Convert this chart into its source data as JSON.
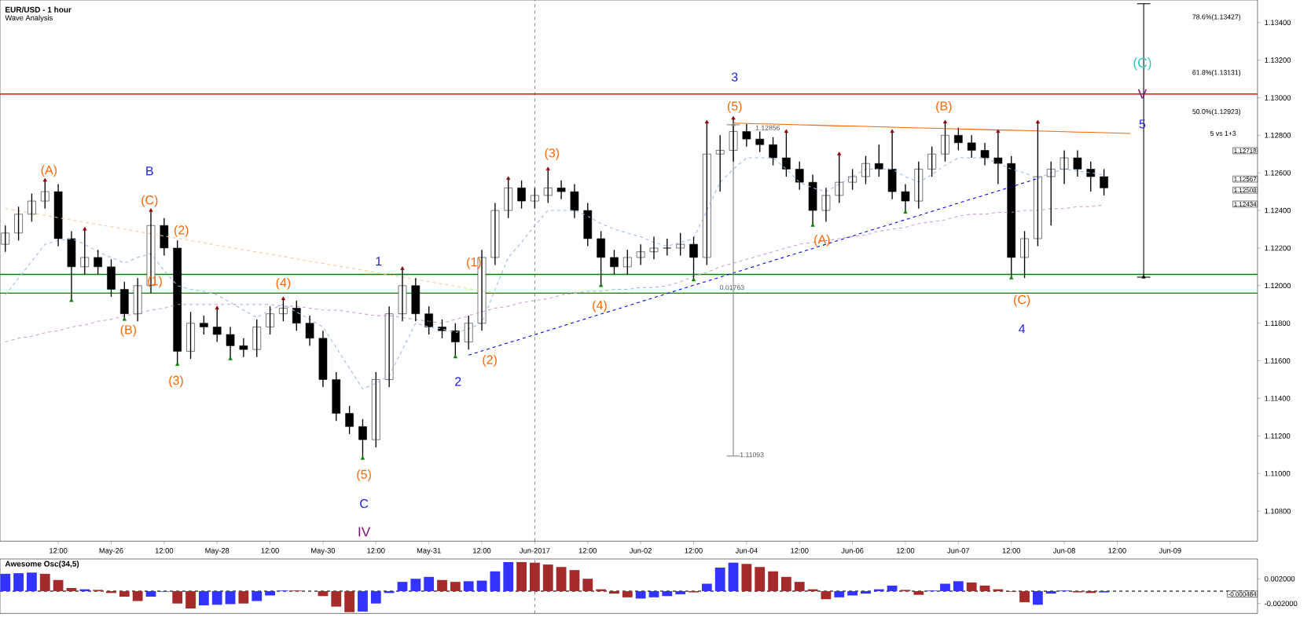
{
  "chart_data": [
    {
      "type": "candlestick",
      "title": "EUR/USD - 1 hour",
      "subtitle": "Wave Analysis",
      "categories": [
        null,
        null,
        null,
        null,
        "12:00",
        null,
        null,
        null,
        "May-26",
        null,
        null,
        null,
        "12:00",
        null,
        null,
        null,
        "May-28",
        null,
        null,
        null,
        "12:00",
        null,
        null,
        null,
        "May-30",
        null,
        null,
        null,
        "12:00",
        null,
        null,
        null,
        "May-31",
        null,
        null,
        null,
        "12:00",
        null,
        null,
        null,
        "Jun-2017",
        null,
        null,
        null,
        "12:00",
        null,
        null,
        null,
        "Jun-02",
        null,
        null,
        null,
        "12:00",
        null,
        null,
        null,
        "Jun-04",
        null,
        null,
        null,
        "12:00",
        null,
        null,
        null,
        "Jun-06",
        null,
        null,
        null,
        "12:00",
        null,
        null,
        null,
        "Jun-07",
        null,
        null,
        null,
        "12:00",
        null,
        null,
        null,
        "Jun-08",
        null,
        null,
        null,
        "12:00",
        null,
        null,
        null,
        "Jun-09",
        null,
        null,
        null,
        null,
        null,
        null
      ],
      "ohlc": [
        [
          1.1222,
          1.1232,
          1.1218,
          1.1228
        ],
        [
          1.1228,
          1.1242,
          1.1224,
          1.1238
        ],
        [
          1.1238,
          1.1249,
          1.1234,
          1.1245
        ],
        [
          1.1245,
          1.1256,
          1.1241,
          1.125
        ],
        [
          1.125,
          1.1254,
          1.1221,
          1.1225
        ],
        [
          1.1225,
          1.1229,
          1.1192,
          1.121
        ],
        [
          1.121,
          1.123,
          1.1206,
          1.1215
        ],
        [
          1.1215,
          1.1219,
          1.1206,
          1.121
        ],
        [
          1.121,
          1.1214,
          1.1194,
          1.1198
        ],
        [
          1.1198,
          1.1202,
          1.1182,
          1.1185
        ],
        [
          1.1185,
          1.1204,
          1.1181,
          1.12
        ],
        [
          1.12,
          1.124,
          1.1196,
          1.1232
        ],
        [
          1.1232,
          1.1236,
          1.1216,
          1.122
        ],
        [
          1.122,
          1.1224,
          1.1158,
          1.1165
        ],
        [
          1.1165,
          1.1186,
          1.1161,
          1.118
        ],
        [
          1.118,
          1.1184,
          1.1174,
          1.1178
        ],
        [
          1.1178,
          1.1188,
          1.117,
          1.1174
        ],
        [
          1.1174,
          1.1178,
          1.1161,
          1.1168
        ],
        [
          1.1168,
          1.1172,
          1.1162,
          1.1166
        ],
        [
          1.1166,
          1.1182,
          1.1162,
          1.1178
        ],
        [
          1.1178,
          1.1189,
          1.1174,
          1.1185
        ],
        [
          1.1185,
          1.1193,
          1.1181,
          1.1188
        ],
        [
          1.1188,
          1.1192,
          1.1176,
          1.118
        ],
        [
          1.118,
          1.1184,
          1.1168,
          1.1172
        ],
        [
          1.1172,
          1.1176,
          1.1146,
          1.115
        ],
        [
          1.115,
          1.1154,
          1.1128,
          1.1132
        ],
        [
          1.1132,
          1.1136,
          1.1121,
          1.1125
        ],
        [
          1.1125,
          1.1129,
          1.1108,
          1.1118
        ],
        [
          1.1118,
          1.1154,
          1.1114,
          1.115
        ],
        [
          1.115,
          1.1189,
          1.1146,
          1.1185
        ],
        [
          1.1185,
          1.1209,
          1.1181,
          1.12
        ],
        [
          1.12,
          1.1204,
          1.1181,
          1.1185
        ],
        [
          1.1185,
          1.1189,
          1.1174,
          1.1178
        ],
        [
          1.1178,
          1.1182,
          1.1172,
          1.1176
        ],
        [
          1.1176,
          1.118,
          1.1162,
          1.117
        ],
        [
          1.117,
          1.1184,
          1.1166,
          1.118
        ],
        [
          1.118,
          1.1219,
          1.1176,
          1.1215
        ],
        [
          1.1215,
          1.1244,
          1.1211,
          1.124
        ],
        [
          1.124,
          1.1257,
          1.1236,
          1.1252
        ],
        [
          1.1252,
          1.1256,
          1.1241,
          1.1245
        ],
        [
          1.1245,
          1.1252,
          1.1241,
          1.1248
        ],
        [
          1.1248,
          1.1262,
          1.1244,
          1.1252
        ],
        [
          1.1252,
          1.1256,
          1.1246,
          1.125
        ],
        [
          1.125,
          1.1254,
          1.1236,
          1.124
        ],
        [
          1.124,
          1.1244,
          1.1221,
          1.1225
        ],
        [
          1.1225,
          1.1229,
          1.12,
          1.1215
        ],
        [
          1.1215,
          1.1219,
          1.1206,
          1.121
        ],
        [
          1.121,
          1.1219,
          1.1206,
          1.1215
        ],
        [
          1.1215,
          1.1222,
          1.1211,
          1.1218
        ],
        [
          1.1218,
          1.1226,
          1.1214,
          1.122
        ],
        [
          1.122,
          1.1225,
          1.1216,
          1.122
        ],
        [
          1.122,
          1.1228,
          1.1216,
          1.1222
        ],
        [
          1.1222,
          1.1226,
          1.1203,
          1.1215
        ],
        [
          1.1215,
          1.1287,
          1.1211,
          1.127
        ],
        [
          1.127,
          1.128,
          1.125,
          1.1272
        ],
        [
          1.1272,
          1.1289,
          1.1266,
          1.1282
        ],
        [
          1.1282,
          1.1286,
          1.1274,
          1.1278
        ],
        [
          1.1278,
          1.1282,
          1.1271,
          1.1275
        ],
        [
          1.1275,
          1.1279,
          1.1264,
          1.1268
        ],
        [
          1.1268,
          1.1282,
          1.1258,
          1.1262
        ],
        [
          1.1262,
          1.1266,
          1.1251,
          1.1255
        ],
        [
          1.1255,
          1.1259,
          1.1232,
          1.124
        ],
        [
          1.124,
          1.1252,
          1.1234,
          1.1248
        ],
        [
          1.1248,
          1.127,
          1.1244,
          1.1255
        ],
        [
          1.1255,
          1.1262,
          1.1251,
          1.1258
        ],
        [
          1.1258,
          1.1269,
          1.1254,
          1.1265
        ],
        [
          1.1265,
          1.1275,
          1.1258,
          1.1262
        ],
        [
          1.1262,
          1.1282,
          1.1246,
          1.125
        ],
        [
          1.125,
          1.1254,
          1.1239,
          1.1245
        ],
        [
          1.1245,
          1.1266,
          1.1241,
          1.1262
        ],
        [
          1.1262,
          1.1274,
          1.1258,
          1.127
        ],
        [
          1.127,
          1.1287,
          1.1266,
          1.128
        ],
        [
          1.128,
          1.1284,
          1.1272,
          1.1276
        ],
        [
          1.1276,
          1.128,
          1.1268,
          1.1272
        ],
        [
          1.1272,
          1.1276,
          1.1264,
          1.1268
        ],
        [
          1.1268,
          1.1282,
          1.1254,
          1.1265
        ],
        [
          1.1265,
          1.1269,
          1.1204,
          1.1215
        ],
        [
          1.1215,
          1.1229,
          1.1204,
          1.1225
        ],
        [
          1.1225,
          1.1287,
          1.1221,
          1.1258
        ],
        [
          1.1258,
          1.1266,
          1.1232,
          1.1262
        ],
        [
          1.1262,
          1.1272,
          1.1254,
          1.1268
        ],
        [
          1.1268,
          1.1272,
          1.1258,
          1.1262
        ],
        [
          1.1262,
          1.1266,
          1.125,
          1.1258
        ],
        [
          1.1258,
          1.1262,
          1.1248,
          1.1252
        ],
        null,
        null,
        null,
        null,
        null,
        null,
        null,
        null,
        null,
        null,
        null
      ],
      "series": [
        {
          "type": "line",
          "color": "#9ab8f0",
          "line_style": "dashed",
          "values": [
            1.1195,
            1.1204,
            1.1213,
            1.1222,
            1.1224,
            1.1225,
            1.1222,
            1.1218,
            1.1215,
            1.1212,
            1.1215,
            1.1217,
            1.1208,
            1.12,
            1.1198,
            1.1197,
            1.1195,
            1.1191,
            1.1187,
            1.1183,
            1.1187,
            1.119,
            1.1186,
            1.1182,
            1.1178,
            1.1167,
            1.1156,
            1.1145,
            1.1148,
            1.1152,
            1.1166,
            1.118,
            1.1178,
            1.1177,
            1.1175,
            1.1177,
            1.118,
            1.1198,
            1.1215,
            1.1223,
            1.1232,
            1.124,
            1.124,
            1.124,
            1.1237,
            1.1233,
            1.123,
            1.1228,
            1.1226,
            1.1223,
            1.1221,
            1.1223,
            1.1225,
            1.124,
            1.1255,
            1.1262,
            1.1268,
            1.1268,
            1.1268,
            1.1262,
            1.1255,
            1.1252,
            1.125,
            1.1254,
            1.1258,
            1.1262,
            1.1262,
            1.1262,
            1.1258,
            1.1255,
            1.1259,
            1.1264,
            1.1268,
            1.1268,
            1.1268,
            1.1265,
            1.1262,
            1.126,
            1.1257,
            1.126,
            1.1262,
            1.1261,
            1.126,
            1.1259,
            null,
            null,
            null,
            null,
            null,
            null,
            null,
            null,
            null,
            null,
            null
          ]
        },
        {
          "type": "line",
          "color": "#c8a0d0",
          "line_style": "dashed",
          "values": [
            1.117,
            1.1172,
            1.1173,
            1.1175,
            1.1176,
            1.1178,
            1.1179,
            1.1181,
            1.1182,
            1.1184,
            1.1185,
            1.1187,
            1.1188,
            1.119,
            1.119,
            1.119,
            1.119,
            1.119,
            1.119,
            1.119,
            1.119,
            1.1189,
            1.1189,
            1.1188,
            1.1187,
            1.1187,
            1.1186,
            1.1185,
            1.1184,
            1.1184,
            1.1183,
            1.1182,
            1.1181,
            1.118,
            1.1182,
            1.1184,
            1.1186,
            1.1188,
            1.1189,
            1.1191,
            1.1192,
            1.1193,
            1.1195,
            1.1196,
            1.1197,
            1.1197,
            1.1198,
            1.1198,
            1.1199,
            1.1199,
            1.12,
            1.1202,
            1.1205,
            1.1207,
            1.121,
            1.1212,
            1.1214,
            1.1216,
            1.1218,
            1.122,
            1.1222,
            1.1223,
            1.1224,
            1.1225,
            1.1226,
            1.1227,
            1.1229,
            1.123,
            1.1231,
            1.1233,
            1.1234,
            1.1235,
            1.1237,
            1.1238,
            1.1238,
            1.1239,
            1.1239,
            1.124,
            1.124,
            1.1241,
            1.1241,
            1.1242,
            1.1242,
            1.1243,
            null,
            null,
            null,
            null,
            null,
            null,
            null,
            null,
            null,
            null,
            null
          ]
        },
        {
          "type": "line",
          "color": "#ffc890",
          "line_style": "dashed",
          "values": [
            1.1241,
            1.12398,
            1.12386,
            1.12374,
            1.12361,
            1.12349,
            1.12337,
            1.12325,
            1.12313,
            1.12301,
            1.12288,
            1.12276,
            1.12264,
            1.12252,
            1.1224,
            1.12228,
            1.12215,
            1.12203,
            1.12191,
            1.12179,
            1.12167,
            1.12155,
            1.12142,
            1.1213,
            1.12118,
            1.12106,
            1.12094,
            1.12082,
            1.1207,
            1.12057,
            1.12045,
            1.12033,
            1.12021,
            1.12009,
            1.11997,
            1.11984,
            1.11972,
            1.1196,
            null,
            null,
            null,
            null,
            null,
            null,
            null,
            null,
            null,
            null,
            null,
            null,
            null,
            null,
            null,
            null,
            null,
            null,
            null,
            null,
            null,
            null,
            null,
            null,
            null,
            null,
            null,
            null,
            null,
            null,
            null,
            null,
            null,
            null,
            null,
            null,
            null,
            null,
            null,
            null,
            null,
            null,
            null,
            null,
            null,
            null,
            null,
            null,
            null,
            null,
            null,
            null,
            null,
            null,
            null,
            null,
            null
          ]
        },
        {
          "type": "line",
          "color": "#ff6600",
          "values": [
            null,
            null,
            null,
            null,
            null,
            null,
            null,
            null,
            null,
            null,
            null,
            null,
            null,
            null,
            null,
            null,
            null,
            null,
            null,
            null,
            null,
            null,
            null,
            null,
            null,
            null,
            null,
            null,
            null,
            null,
            null,
            null,
            null,
            null,
            null,
            null,
            null,
            null,
            null,
            null,
            null,
            null,
            null,
            null,
            null,
            null,
            null,
            null,
            null,
            null,
            null,
            null,
            null,
            null,
            null,
            1.12865,
            1.12863,
            1.12861,
            1.1286,
            1.12858,
            1.12856,
            1.12854,
            1.12852,
            1.1285,
            1.12849,
            1.12847,
            1.12845,
            1.12843,
            1.12841,
            1.12839,
            1.12838,
            1.12836,
            1.12834,
            1.12832,
            1.1283,
            1.12828,
            1.12827,
            1.12825,
            1.12823,
            1.12821,
            1.12819,
            1.12817,
            1.12816,
            1.12814,
            1.12812,
            1.1281,
            null,
            null,
            null,
            null,
            null,
            null,
            null,
            null,
            null
          ]
        },
        {
          "type": "line",
          "color": "#0000ff",
          "line_style": "dashed",
          "values": [
            null,
            null,
            null,
            null,
            null,
            null,
            null,
            null,
            null,
            null,
            null,
            null,
            null,
            null,
            null,
            null,
            null,
            null,
            null,
            null,
            null,
            null,
            null,
            null,
            null,
            null,
            null,
            null,
            null,
            null,
            null,
            null,
            null,
            null,
            null,
            1.1163,
            1.11652,
            1.11674,
            1.11696,
            1.11717,
            1.11739,
            1.11761,
            1.11783,
            1.11805,
            1.11827,
            1.11849,
            1.1187,
            1.11892,
            1.11914,
            1.11936,
            1.11958,
            1.1198,
            1.12002,
            1.12023,
            1.12045,
            1.12067,
            1.12089,
            1.12111,
            1.12133,
            1.12155,
            1.12176,
            1.12198,
            1.1222,
            1.12242,
            1.12264,
            1.12286,
            1.12308,
            1.12329,
            1.12351,
            1.12373,
            1.12395,
            1.12417,
            1.12439,
            1.12461,
            1.12482,
            1.12504,
            1.12526,
            1.12548,
            1.1257,
            null,
            null,
            null,
            null,
            null,
            null,
            null,
            null,
            null,
            null,
            null,
            null,
            null,
            null,
            null,
            null
          ]
        },
        {
          "type": "scatter",
          "color": "#808080",
          "marker": "triangle",
          "values": [
            null,
            null,
            null,
            null,
            null,
            null,
            null,
            null,
            null,
            null,
            null,
            null,
            null,
            null,
            null,
            null,
            null,
            null,
            null,
            null,
            null,
            null,
            null,
            null,
            null,
            null,
            null,
            null,
            null,
            null,
            null,
            null,
            null,
            null,
            null,
            null,
            null,
            null,
            null,
            null,
            null,
            null,
            null,
            null,
            null,
            null,
            null,
            null,
            null,
            null,
            null,
            null,
            null,
            null,
            null,
            1.12856,
            null,
            null,
            null,
            null,
            null,
            null,
            null,
            null,
            null,
            null,
            null,
            null,
            null,
            null,
            null,
            null,
            null,
            null,
            null,
            null,
            null,
            null,
            null,
            null,
            null,
            null,
            null,
            null,
            null,
            null,
            null,
            null,
            null,
            null,
            null,
            null,
            null,
            null,
            null
          ],
          "errors": [
            null,
            null,
            null,
            null,
            null,
            null,
            null,
            null,
            null,
            null,
            null,
            null,
            null,
            null,
            null,
            null,
            null,
            null,
            null,
            null,
            null,
            null,
            null,
            null,
            null,
            null,
            null,
            null,
            null,
            null,
            null,
            null,
            null,
            null,
            null,
            null,
            null,
            null,
            null,
            null,
            null,
            null,
            null,
            null,
            null,
            null,
            null,
            null,
            null,
            null,
            null,
            null,
            null,
            null,
            null,
            [
              1.11093,
              1.12856
            ],
            null,
            null,
            null,
            null,
            null,
            null,
            null,
            null,
            null,
            null,
            null,
            null,
            null,
            null,
            null,
            null,
            null,
            null,
            null,
            null,
            null,
            null,
            null,
            null,
            null,
            null,
            null,
            null,
            null,
            null,
            null,
            null,
            null,
            null,
            null,
            null,
            null,
            null,
            null
          ]
        },
        {
          "type": "scatter",
          "color": "#000000",
          "marker": "triangle",
          "values": [
            null,
            null,
            null,
            null,
            null,
            null,
            null,
            null,
            null,
            null,
            null,
            null,
            null,
            null,
            null,
            null,
            null,
            null,
            null,
            null,
            null,
            null,
            null,
            null,
            null,
            null,
            null,
            null,
            null,
            null,
            null,
            null,
            null,
            null,
            null,
            null,
            null,
            null,
            null,
            null,
            null,
            null,
            null,
            null,
            null,
            null,
            null,
            null,
            null,
            null,
            null,
            null,
            null,
            null,
            null,
            null,
            null,
            null,
            null,
            null,
            null,
            null,
            null,
            null,
            null,
            null,
            null,
            null,
            null,
            null,
            null,
            null,
            null,
            null,
            null,
            null,
            null,
            null,
            null,
            null,
            null,
            null,
            null,
            null,
            null,
            null,
            1.12045,
            null,
            null,
            null,
            null,
            null,
            null,
            null,
            null
          ],
          "errors": [
            null,
            null,
            null,
            null,
            null,
            null,
            null,
            null,
            null,
            null,
            null,
            null,
            null,
            null,
            null,
            null,
            null,
            null,
            null,
            null,
            null,
            null,
            null,
            null,
            null,
            null,
            null,
            null,
            null,
            null,
            null,
            null,
            null,
            null,
            null,
            null,
            null,
            null,
            null,
            null,
            null,
            null,
            null,
            null,
            null,
            null,
            null,
            null,
            null,
            null,
            null,
            null,
            null,
            null,
            null,
            null,
            null,
            null,
            null,
            null,
            null,
            null,
            null,
            null,
            null,
            null,
            null,
            null,
            null,
            null,
            null,
            null,
            null,
            null,
            null,
            null,
            null,
            null,
            null,
            null,
            null,
            null,
            null,
            null,
            null,
            null,
            [
              1.12045,
              1.135
            ],
            null,
            null,
            null,
            null,
            null,
            null,
            null,
            null
          ]
        },
        {
          "type": "scatter",
          "color": "#8b0000",
          "marker": "triangle",
          "values": [
            null,
            null,
            null,
            1.1256,
            null,
            null,
            1.123,
            null,
            null,
            null,
            null,
            1.124,
            null,
            null,
            null,
            null,
            1.1188,
            null,
            null,
            null,
            null,
            1.1193,
            null,
            null,
            null,
            null,
            null,
            null,
            null,
            null,
            1.1209,
            null,
            null,
            null,
            null,
            null,
            null,
            null,
            1.1257,
            null,
            null,
            1.1262,
            null,
            null,
            null,
            null,
            null,
            null,
            null,
            null,
            null,
            null,
            null,
            1.1287,
            null,
            1.1289,
            null,
            null,
            null,
            1.1282,
            null,
            null,
            null,
            1.127,
            null,
            null,
            null,
            1.1282,
            null,
            null,
            null,
            1.1287,
            null,
            null,
            null,
            1.1282,
            null,
            null,
            1.1287,
            null,
            null,
            null,
            null,
            null,
            null,
            null,
            null,
            null,
            null,
            null,
            null,
            null,
            null,
            null,
            null
          ]
        },
        {
          "type": "scatter",
          "color": "#008000",
          "marker": "triangle",
          "values": [
            null,
            null,
            null,
            null,
            null,
            1.1192,
            null,
            null,
            null,
            1.1182,
            null,
            null,
            null,
            1.1158,
            null,
            null,
            null,
            1.1161,
            null,
            null,
            null,
            null,
            null,
            null,
            null,
            null,
            null,
            1.1108,
            null,
            null,
            null,
            null,
            null,
            null,
            1.1162,
            null,
            null,
            null,
            null,
            null,
            null,
            null,
            null,
            null,
            null,
            1.12,
            null,
            null,
            null,
            null,
            null,
            null,
            1.1203,
            null,
            null,
            null,
            null,
            null,
            null,
            null,
            null,
            1.1232,
            null,
            null,
            null,
            null,
            null,
            null,
            1.1239,
            null,
            null,
            null,
            null,
            null,
            null,
            null,
            1.1204,
            null,
            null,
            null,
            null,
            null,
            null,
            null,
            null,
            null,
            null,
            null,
            null,
            null,
            null,
            null,
            null,
            null,
            null
          ]
        }
      ],
      "ref_lines": [
        {
          "axis": "y",
          "value": 1.1302,
          "color": "#ff0000"
        },
        {
          "axis": "y",
          "value": 1.1206,
          "color": "#008000"
        },
        {
          "axis": "y",
          "value": 1.1196,
          "color": "#008000"
        },
        {
          "axis": "x",
          "value": "Jun-2017",
          "color": "#404040",
          "line_style": "dashed"
        }
      ],
      "annotations": [
        "(A)",
        "B",
        "(C)",
        "(2)",
        "(1)",
        "(B)",
        "(3)",
        "(4)",
        "(5)",
        "C",
        "IV",
        "1",
        "(1)",
        "2",
        "(2)",
        "(3)",
        "(4)",
        "3",
        "(5)",
        "(A)",
        "(B)",
        "(C)",
        "4",
        "(C)",
        "V",
        "5",
        "1.12856",
        "0.01763",
        "1.11093",
        "78.6%(1.13427)",
        "61.8%(1.13131)",
        "50.0%(1.12923)",
        "5 vs 1+3",
        "1.12718",
        "1.12567",
        "1.12508",
        "1.12434"
      ],
      "ylim": [
        1.1064,
        1.1352
      ],
      "yticks": [
        {
          "value": 1.108,
          "label": "1.10800"
        },
        {
          "value": 1.11,
          "label": "1.11000"
        },
        {
          "value": 1.112,
          "label": "1.11200"
        },
        {
          "value": 1.114,
          "label": "1.11400"
        },
        {
          "value": 1.116,
          "label": "1.11600"
        },
        {
          "value": 1.118,
          "label": "1.11800"
        },
        {
          "value": 1.12,
          "label": "1.12000"
        },
        {
          "value": 1.122,
          "label": "1.12200"
        },
        {
          "value": 1.124,
          "label": "1.12400"
        },
        {
          "value": 1.126,
          "label": "1.12600"
        },
        {
          "value": 1.128,
          "label": "1.12800"
        },
        {
          "value": 1.13,
          "label": "1.13000"
        },
        {
          "value": 1.132,
          "label": "1.13200"
        },
        {
          "value": 1.134,
          "label": "1.13400"
        }
      ]
    },
    {
      "type": "bar",
      "title": "Awesome Osc(34,5)",
      "categories": [
        null,
        null,
        null,
        null,
        "12:00",
        null,
        null,
        null,
        "May-26",
        null,
        null,
        null,
        "12:00",
        null,
        null,
        null,
        "May-28",
        null,
        null,
        null,
        "12:00",
        null,
        null,
        null,
        "May-30",
        null,
        null,
        null,
        "12:00",
        null,
        null,
        null,
        "May-31",
        null,
        null,
        null,
        "12:00",
        null,
        null,
        null,
        "Jun-2017",
        null,
        null,
        null,
        "12:00",
        null,
        null,
        null,
        "Jun-02",
        null,
        null,
        null,
        "12:00",
        null,
        null,
        null,
        "Jun-04",
        null,
        null,
        null,
        "12:00",
        null,
        null,
        null,
        "Jun-06",
        null,
        null,
        null,
        "12:00",
        null,
        null,
        null,
        "Jun-07",
        null,
        null,
        null,
        "12:00",
        null,
        null,
        null,
        "Jun-08",
        null,
        null,
        null,
        "12:00",
        null,
        null,
        null,
        "Jun-09",
        null,
        null,
        null,
        null,
        null,
        null
      ],
      "values": [
        0.0028,
        0.0029,
        0.003,
        0.0028,
        0.0018,
        0.0005,
        0.0003,
        0.0002,
        -0.0003,
        -0.0009,
        -0.0016,
        -0.0009,
        -0.0001,
        -0.002,
        -0.0028,
        -0.0023,
        -0.0022,
        -0.0021,
        -0.002,
        -0.0016,
        -0.0007,
        0.0001,
        0.0001,
        0.0,
        -0.0008,
        -0.0025,
        -0.0034,
        -0.0033,
        -0.002,
        -0.0003,
        0.0015,
        0.002,
        0.0023,
        0.0018,
        0.0015,
        0.0016,
        0.0017,
        0.0032,
        0.0047,
        0.0047,
        0.0046,
        0.0043,
        0.0039,
        0.0034,
        0.002,
        0.0003,
        -0.0004,
        -0.001,
        -0.0012,
        -0.001,
        -0.0008,
        -0.0005,
        -0.0002,
        0.0012,
        0.0038,
        0.0046,
        0.0044,
        0.0039,
        0.0032,
        0.0023,
        0.0015,
        0.0003,
        -0.0013,
        -0.001,
        -0.0007,
        -0.0004,
        0.0003,
        0.0009,
        0.0002,
        -0.0006,
        0.0001,
        0.0012,
        0.0016,
        0.0014,
        0.0009,
        0.0003,
        -0.0001,
        -0.0018,
        -0.0022,
        -0.0004,
        0.0001,
        -0.0002,
        -0.0003,
        -0.0002,
        null,
        null,
        null,
        null,
        null,
        null,
        null,
        null,
        null,
        null,
        null
      ],
      "colors": [
        "#3333ff",
        "#3333ff",
        "#3333ff",
        "#a52a2a",
        "#a52a2a",
        "#a52a2a",
        "#3333ff",
        "#a52a2a",
        "#a52a2a",
        "#a52a2a",
        "#a52a2a",
        "#3333ff",
        "#3333ff",
        "#a52a2a",
        "#a52a2a",
        "#3333ff",
        "#3333ff",
        "#3333ff",
        "#a52a2a",
        "#3333ff",
        "#3333ff",
        "#3333ff",
        "#a52a2a",
        "#a52a2a",
        "#a52a2a",
        "#a52a2a",
        "#a52a2a",
        "#3333ff",
        "#3333ff",
        "#3333ff",
        "#3333ff",
        "#3333ff",
        "#3333ff",
        "#a52a2a",
        "#a52a2a",
        "#3333ff",
        "#3333ff",
        "#3333ff",
        "#3333ff",
        "#a52a2a",
        "#a52a2a",
        "#a52a2a",
        "#a52a2a",
        "#a52a2a",
        "#a52a2a",
        "#a52a2a",
        "#a52a2a",
        "#a52a2a",
        "#3333ff",
        "#3333ff",
        "#3333ff",
        "#3333ff",
        "#a52a2a",
        "#3333ff",
        "#3333ff",
        "#3333ff",
        "#a52a2a",
        "#a52a2a",
        "#a52a2a",
        "#a52a2a",
        "#a52a2a",
        "#a52a2a",
        "#a52a2a",
        "#3333ff",
        "#3333ff",
        "#3333ff",
        "#3333ff",
        "#3333ff",
        "#a52a2a",
        "#a52a2a",
        "#3333ff",
        "#3333ff",
        "#3333ff",
        "#a52a2a",
        "#a52a2a",
        "#a52a2a",
        "#a52a2a",
        "#a52a2a",
        "#3333ff",
        "#3333ff",
        "#3333ff",
        "#a52a2a",
        "#a52a2a",
        "#3333ff",
        null,
        null,
        null,
        null,
        null,
        null,
        null,
        null,
        null,
        null,
        null
      ],
      "ylim": [
        -0.0036,
        0.0052
      ],
      "yticks": [
        {
          "value": -0.002,
          "label": "-0.002000"
        },
        {
          "value": 0.002,
          "label": "0.002000"
        }
      ],
      "tick_labels": "y",
      "ref_lines": [
        {
          "axis": "y",
          "value": 0,
          "color": "#404040",
          "line_style": "dashed"
        },
        {
          "axis": "x",
          "value": "Jun-2017",
          "color": "#404040",
          "line_style": "dashed"
        }
      ],
      "annotations": [
        "-0.000484"
      ]
    }
  ]
}
